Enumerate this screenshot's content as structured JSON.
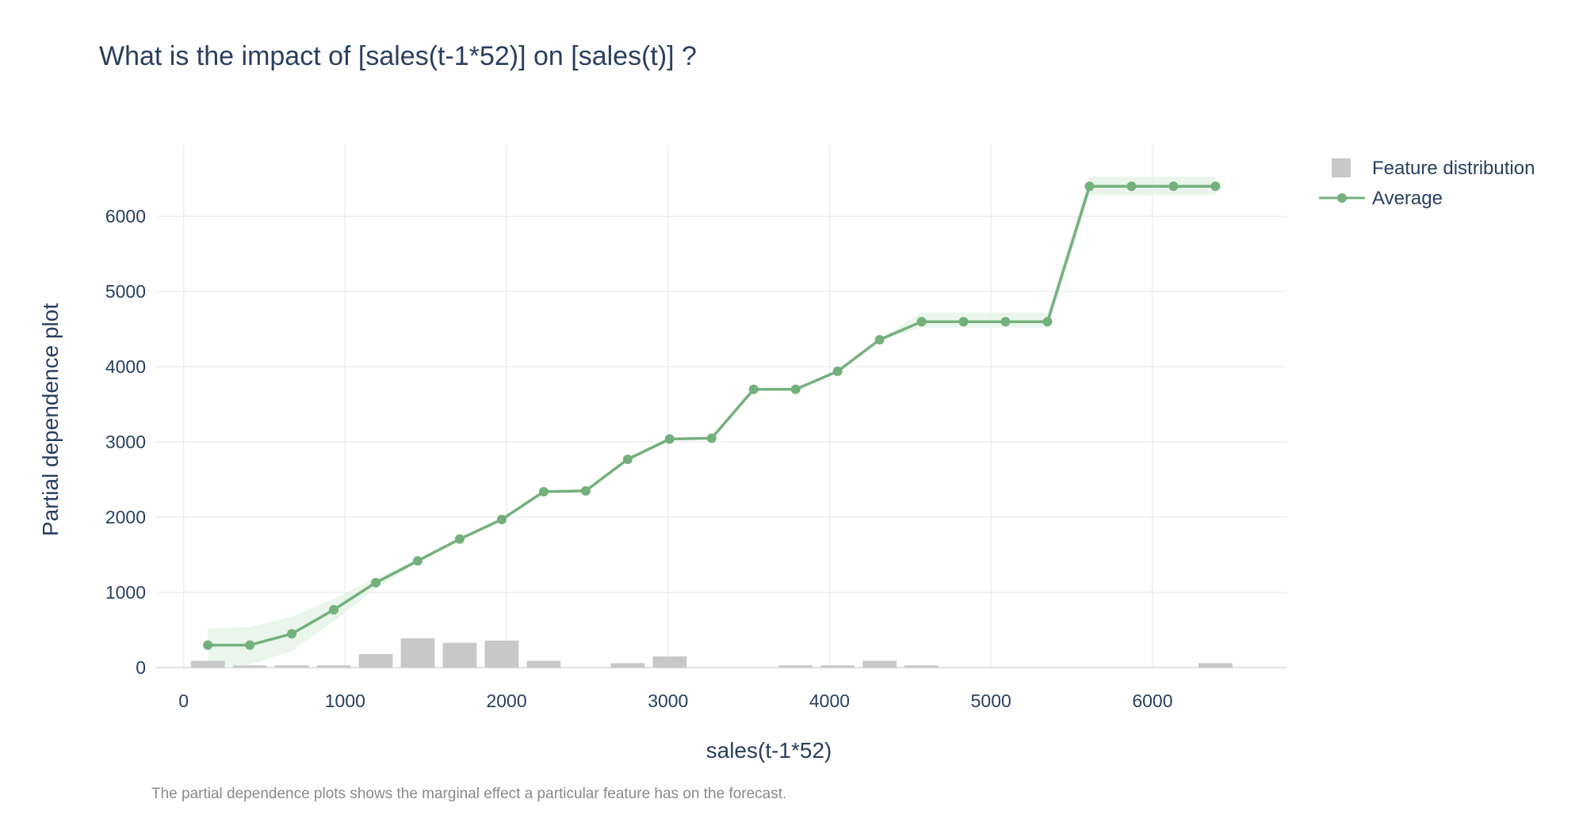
{
  "chart_data": {
    "type": "line",
    "title": "What is the impact of [sales(t-1*52)] on [sales(t)] ?",
    "xlabel": "sales(t-1*52)",
    "ylabel": "Partial dependence plot",
    "caption": "The partial dependence plots shows the marginal effect a particular feature has on the forecast.",
    "xlim": [
      -170,
      6830
    ],
    "ylim": [
      -20,
      6950
    ],
    "x_ticks": [
      0,
      1000,
      2000,
      3000,
      4000,
      5000,
      6000
    ],
    "y_ticks": [
      0,
      1000,
      2000,
      3000,
      4000,
      5000,
      6000
    ],
    "x_tick_labels": [
      "0",
      "1000",
      "2000",
      "3000",
      "4000",
      "5000",
      "6000"
    ],
    "y_tick_labels": [
      "0",
      "1000",
      "2000",
      "3000",
      "4000",
      "5000",
      "6000"
    ],
    "grid": true,
    "legend_position": "top-right",
    "colors": {
      "average": "#74b07c",
      "band": "#e6f4e8",
      "distribution": "#c8c8c8",
      "grid": "#ebedf2",
      "text": "#2a3f5f"
    },
    "series": [
      {
        "name": "Average",
        "type": "line",
        "x": [
          150,
          410,
          670,
          930,
          1190,
          1450,
          1710,
          1970,
          2230,
          2490,
          2750,
          3010,
          3270,
          3530,
          3790,
          4050,
          4310,
          4570,
          4830,
          5090,
          5350,
          5610,
          5870,
          6130,
          6390
        ],
        "y": [
          300,
          300,
          450,
          770,
          1130,
          1420,
          1710,
          1970,
          2340,
          2350,
          2770,
          3040,
          3050,
          3700,
          3700,
          3940,
          4360,
          4600,
          4600,
          4600,
          4600,
          6400,
          6400,
          6400,
          6400
        ],
        "lower": [
          20,
          40,
          220,
          620,
          1050,
          1400,
          1700,
          1960,
          2330,
          2340,
          2760,
          3030,
          3040,
          3690,
          3690,
          3930,
          4350,
          4520,
          4520,
          4520,
          4520,
          6280,
          6280,
          6280,
          6280
        ],
        "upper": [
          520,
          540,
          680,
          920,
          1190,
          1440,
          1720,
          1980,
          2350,
          2360,
          2780,
          3050,
          3060,
          3710,
          3710,
          3950,
          4370,
          4720,
          4720,
          4720,
          4720,
          6530,
          6530,
          6530,
          6530
        ]
      },
      {
        "name": "Feature distribution",
        "type": "bar",
        "x": [
          150,
          410,
          670,
          930,
          1190,
          1450,
          1710,
          1970,
          2230,
          2490,
          2750,
          3010,
          3270,
          3530,
          3790,
          4050,
          4310,
          4570,
          4830,
          5090,
          5350,
          5610,
          5870,
          6130,
          6390
        ],
        "values": [
          90,
          30,
          30,
          30,
          180,
          390,
          330,
          360,
          90,
          0,
          60,
          150,
          0,
          0,
          30,
          30,
          90,
          30,
          0,
          0,
          0,
          0,
          0,
          0,
          60
        ],
        "bar_width": 210
      }
    ]
  }
}
